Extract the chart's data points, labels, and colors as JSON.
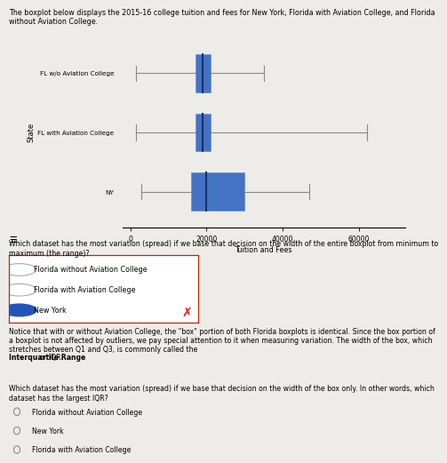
{
  "title_text": "The boxplot below displays the 2015-16 college tuition and fees for New York, Florida with Aviation College, and Florida\nwithout Aviation College.",
  "ylabel": "State",
  "xlabel": "Tuition and Fees",
  "ylabels": [
    "NY",
    "FL with Aviation College",
    "FL w/o Aviation College"
  ],
  "box_color": "#4472C4",
  "xlim": [
    -2000,
    72000
  ],
  "xticks": [
    0,
    20000,
    40000,
    60000
  ],
  "boxplot_data": {
    "NY": {
      "min": 3000,
      "q1": 16000,
      "median": 20000,
      "q3": 30000,
      "max": 47000
    },
    "FL_with": {
      "min": 1500,
      "q1": 17000,
      "median": 19000,
      "q3": 21000,
      "max": 62000
    },
    "FL_without": {
      "min": 1500,
      "q1": 17000,
      "median": 19000,
      "q3": 21000,
      "max": 35000
    }
  },
  "question1_text": "Which dataset has the most variation (spread) if we base that decision on the width of the entire boxplot from minimum to\nmaximum (the range)?",
  "options1": [
    "Florida without Aviation College",
    "Florida with Aviation College",
    "New York"
  ],
  "selected1_idx": 2,
  "explanation_text": "Notice that with or without Aviation College, the \"box\" portion of both Florida boxplots is identical. Since the box portion of\na boxplot is not affected by outliers, we pay special attention to it when measuring variation. The width of the box, which\nstretches between Q1 and Q3, is commonly called the ",
  "explanation_bold": "Interquartile Range",
  "explanation_tail": " or IQR.",
  "question2_text": "Which dataset has the most variation (spread) if we base that decision on the width of the box only. In other words, which\ndataset has the largest IQR?",
  "options2": [
    "Florida without Aviation College",
    "New York",
    "Florida with Aviation College"
  ],
  "background_color": "#eeece8"
}
